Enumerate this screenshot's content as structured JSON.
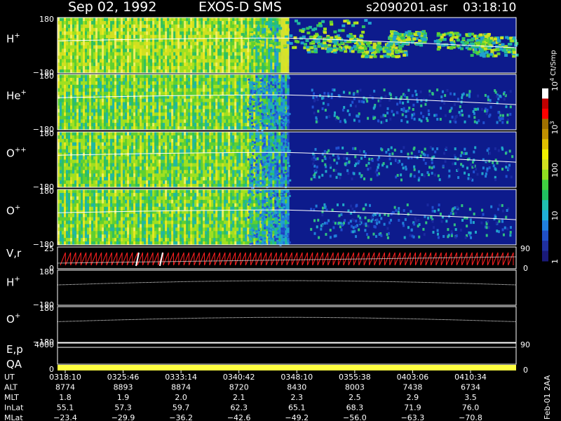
{
  "header": {
    "date": "Sep 02, 1992",
    "instrument": "EXOS-D SMS",
    "file": "s2090201.asr",
    "time": "03:18:10"
  },
  "colors": {
    "background": "#000000",
    "text": "#ffffff",
    "empty_panel": "#0d1b8c",
    "spin_trace": "#ff2020",
    "qa_bar": "#ffff40",
    "curve": "#ffffff"
  },
  "colorbar": {
    "title": "Ct/Smp",
    "ticks": [
      {
        "label": "1",
        "frac": 0.0
      },
      {
        "label": "10",
        "frac": 0.25
      },
      {
        "label": "100",
        "frac": 0.5
      },
      {
        "label": "10",
        "sup": "3",
        "frac": 0.75
      },
      {
        "label": "10",
        "sup": "4",
        "frac": 1.0
      }
    ],
    "colors": [
      "#1a1a7a",
      "#2030a0",
      "#2050c8",
      "#2080e0",
      "#20b0d8",
      "#20c0b0",
      "#20c060",
      "#40d040",
      "#90e020",
      "#d0e020",
      "#f0f000",
      "#e0c000",
      "#c09000",
      "#a07000",
      "#ff0000",
      "#c00000",
      "#ffffff"
    ]
  },
  "time_axis": {
    "labels": [
      "0318:10",
      "0325:46",
      "0333:14",
      "0340:42",
      "0348:10",
      "0355:38",
      "0403:06",
      "0410:34"
    ]
  },
  "ephemeris": [
    {
      "name": "UT",
      "values": [
        "0318:10",
        "0325:46",
        "0333:14",
        "0340:42",
        "0348:10",
        "0355:38",
        "0403:06",
        "0410:34"
      ]
    },
    {
      "name": "ALT",
      "values": [
        "8774",
        "8893",
        "8874",
        "8720",
        "8430",
        "8003",
        "7438",
        "6734"
      ]
    },
    {
      "name": "MLT",
      "values": [
        "1.8",
        "1.9",
        "2.0",
        "2.1",
        "2.3",
        "2.5",
        "2.9",
        "3.5"
      ]
    },
    {
      "name": "InLat",
      "values": [
        "55.1",
        "57.3",
        "59.7",
        "62.3",
        "65.1",
        "68.3",
        "71.9",
        "76.0"
      ]
    },
    {
      "name": "MLat",
      "values": [
        "−23.4",
        "−29.9",
        "−36.2",
        "−42.6",
        "−49.2",
        "−56.0",
        "−63.3",
        "−70.8"
      ]
    }
  ],
  "footer_note": "Feb-01 2AA",
  "chart_data": {
    "type": "heatmap",
    "title": "Sep 02, 1992   EXOS-D SMS",
    "panels": [
      {
        "name": "H",
        "sup": "+",
        "ymin_label": "−180",
        "ymax_label": "180",
        "kind": "spectrogram",
        "transition_frac": 0.505
      },
      {
        "name": "He",
        "sup": "+",
        "ymin_label": "−180",
        "ymax_label": "180",
        "kind": "spectrogram",
        "transition_frac": 0.505
      },
      {
        "name": "O",
        "sup": "++",
        "ymin_label": "−180",
        "ymax_label": "180",
        "kind": "spectrogram",
        "transition_frac": 0.505
      },
      {
        "name": "O",
        "sup": "+",
        "ymin_label": "−180",
        "ymax_label": "180",
        "kind": "spectrogram",
        "transition_frac": 0.505
      },
      {
        "name": "V,r",
        "ymin_label": "0",
        "ymax_label": "25",
        "right_top": "90",
        "right_bottom": "0",
        "kind": "spin"
      },
      {
        "name": "H",
        "sup": "+",
        "ymin_label": "−180",
        "ymax_label": "180",
        "kind": "line"
      },
      {
        "name": "O",
        "sup": "+",
        "ymin_label": "−180",
        "ymax_label": "180",
        "kind": "line"
      },
      {
        "name": "E,p",
        "ytop_label": "4000",
        "right_top": "90",
        "kind": "eline"
      },
      {
        "name": "QA",
        "ybottom_label": "0",
        "right_bottom": "0",
        "kind": "qa"
      }
    ]
  }
}
